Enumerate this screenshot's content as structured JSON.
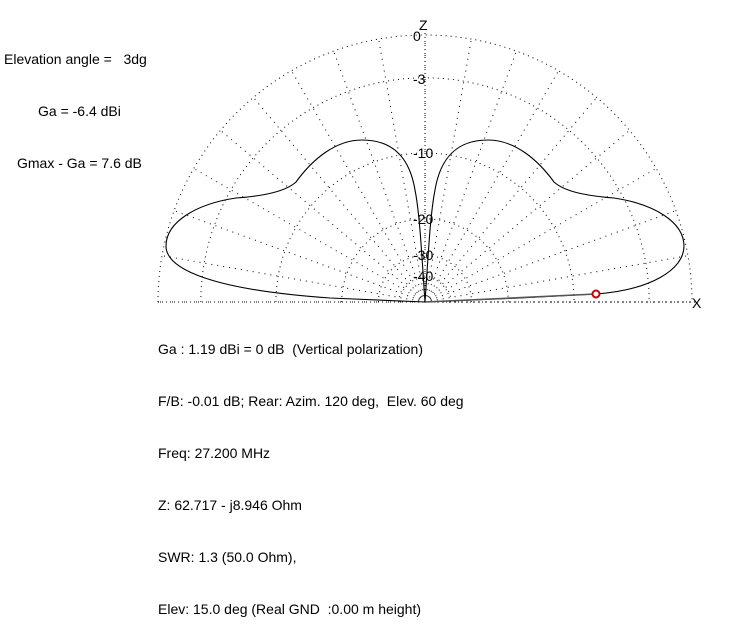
{
  "header": {
    "lines": [
      "Elevation angle =   3dg",
      "Ga = -6.4 dBi",
      "Gmax - Ga = 7.6 dB"
    ]
  },
  "plot": {
    "axis_labels": {
      "z": "Z",
      "x": "X"
    },
    "ring_labels": [
      "0",
      "-3",
      "-10",
      "-20",
      "-30",
      "-40"
    ],
    "ring_db": [
      0,
      -3,
      -10,
      -20,
      -30,
      -40
    ],
    "colors": {
      "pattern": "#000000",
      "grid": "#000000",
      "marker": "#cc0000",
      "cursor_line": "#555555"
    },
    "marker_elevation_deg": 3,
    "marker_gain_db": -6.4
  },
  "footer": {
    "lines": [
      "Ga : 1.19 dBi = 0 dB  (Vertical polarization)",
      "F/B: -0.01 dB; Rear: Azim. 120 deg,  Elev. 60 deg",
      "Freq: 27.200 MHz",
      "Z: 62.717 - j8.946 Ohm",
      "SWR: 1.3 (50.0 Ohm),",
      "Elev: 15.0 deg (Real GND  :0.00 m height)"
    ]
  }
}
